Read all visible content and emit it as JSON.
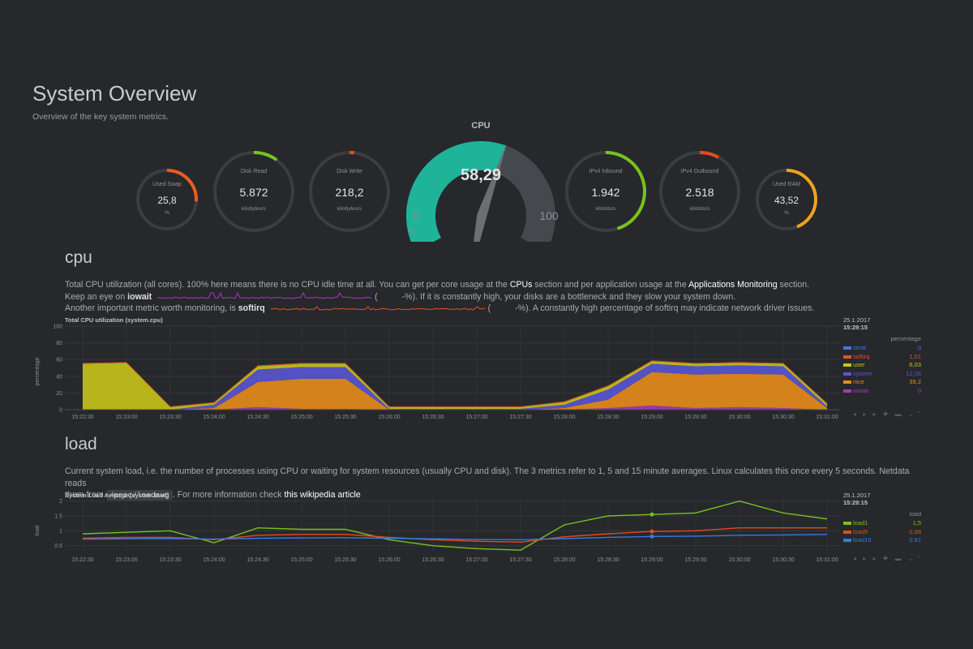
{
  "header": {
    "title": "System Overview",
    "subtitle": "Overview of the key system metrics."
  },
  "gauges": {
    "used_swap": {
      "title": "Used Swap",
      "value": "25,8",
      "units": "%",
      "fraction": 0.26,
      "color": "#e85e1e"
    },
    "disk_read": {
      "title": "Disk Read",
      "value": "5.872",
      "units": "kilobytes/s",
      "fraction": 0.1,
      "color": "#78c21a"
    },
    "disk_write": {
      "title": "Disk Write",
      "value": "218,2",
      "units": "kilobytes/s",
      "fraction": 0.02,
      "color": "#e84a1a"
    },
    "cpu": {
      "title": "CPU",
      "value": "58,29",
      "min": "0",
      "max": "100",
      "units": "%",
      "fraction": 0.583,
      "color": "#1fb39a"
    },
    "ipv4_inbound": {
      "title": "IPv4 Inbound",
      "value": "1.942",
      "units": "kilobits/s",
      "fraction": 0.45,
      "color": "#78c21a"
    },
    "ipv4_outbound": {
      "title": "IPv4 Outbound",
      "value": "2.518",
      "units": "kilobits/s",
      "fraction": 0.08,
      "color": "#e84a1a"
    },
    "used_ram": {
      "title": "Used RAM",
      "value": "43,52",
      "units": "%",
      "fraction": 0.44,
      "color": "#f0a21f"
    }
  },
  "cpu_section": {
    "title": "cpu",
    "line1_a": "Total CPU utilization (all cores). 100% here means there is no CPU idle time at all. You can get per core usage at the ",
    "line1_link1": "CPUs",
    "line1_b": " section and per application usage at the ",
    "line1_link2": "Applications Monitoring",
    "line1_c": " section.",
    "line2_a": "Keep an eye on ",
    "line2_bold": "iowait",
    "line2_paren_open": "(",
    "line2_b": "-%). If it is constantly high, your disks are a bottleneck and they slow your system down.",
    "line3_a": "Another important metric worth monitoring, is ",
    "line3_bold": "softirq",
    "line3_paren_open": "(",
    "line3_b": "-%). A constantly high percentage of softirq may indicate network driver issues.",
    "chart_title": "Total CPU utilization (system.cpu)",
    "y_axis_label": "percentage",
    "legend_date": "25.1.2017",
    "legend_time": "15:29:15",
    "legend_unit": "percentage",
    "legend": [
      {
        "name": "steal",
        "value": "0",
        "color": "#3a78e0"
      },
      {
        "name": "softirq",
        "value": "1,01",
        "color": "#e0542a"
      },
      {
        "name": "user",
        "value": "6,03",
        "color": "#c8c41a"
      },
      {
        "name": "system",
        "value": "12,06",
        "color": "#5a55d6"
      },
      {
        "name": "nice",
        "value": "39,2",
        "color": "#e88c1a"
      },
      {
        "name": "iowait",
        "value": "0",
        "color": "#a63ab8"
      }
    ]
  },
  "load_section": {
    "title": "load",
    "line1": "Current system load, i.e. the number of processes using CPU or waiting for system resources (usually CPU and disk). The 3 metrics refer to 1, 5 and 15 minute averages. Linux calculates this once every 5 seconds. Netdata reads",
    "line2_a": "them from ",
    "line2_code": "/proc/loadavg",
    "line2_b": ". For more information check ",
    "line2_link": "this wikipedia article",
    "chart_title": "System Load Average (system.load)",
    "y_axis_label": "load",
    "legend_date": "25.1.2017",
    "legend_time": "15:29:15",
    "legend_unit": "load",
    "legend": [
      {
        "name": "load1",
        "value": "1,5",
        "color": "#78c21a"
      },
      {
        "name": "load5",
        "value": "0,98",
        "color": "#e84a1a"
      },
      {
        "name": "load15",
        "value": "0,81",
        "color": "#3a78e0"
      }
    ]
  },
  "toolbar_glyphs": "◂ ▸ ▸ ✚ ▬  ⌄⌃",
  "chart_data": [
    {
      "type": "area",
      "title": "Total CPU utilization (system.cpu)",
      "ylabel": "percentage",
      "ylim": [
        0,
        100
      ],
      "yticks": [
        "0",
        "20",
        "40",
        "60",
        "80",
        "100"
      ],
      "x": [
        "15:22:30",
        "15:23:00",
        "15:23:30",
        "15:24:00",
        "15:24:30",
        "15:25:00",
        "15:25:30",
        "15:26:00",
        "15:26:30",
        "15:27:00",
        "15:27:30",
        "15:28:00",
        "15:28:30",
        "15:29:00",
        "15:29:30",
        "15:30:00",
        "15:30:30",
        "15:31:00"
      ],
      "stacked": true,
      "series": [
        {
          "name": "iowait",
          "values": [
            0,
            0,
            0,
            0,
            3,
            1,
            1,
            0,
            0,
            0,
            0,
            0,
            2,
            5,
            2,
            3,
            2,
            0
          ]
        },
        {
          "name": "nice",
          "values": [
            0,
            0,
            0,
            2,
            30,
            36,
            36,
            0,
            0,
            0,
            0,
            2,
            10,
            40,
            40,
            40,
            40,
            2
          ]
        },
        {
          "name": "system",
          "values": [
            0,
            0,
            0,
            4,
            15,
            14,
            14,
            1,
            1,
            1,
            1,
            4,
            12,
            10,
            10,
            10,
            10,
            2
          ]
        },
        {
          "name": "user",
          "values": [
            55,
            56,
            3,
            2,
            4,
            4,
            4,
            2,
            2,
            2,
            2,
            3,
            4,
            3,
            3,
            3,
            3,
            3
          ]
        },
        {
          "name": "softirq",
          "values": [
            1,
            1,
            1,
            1,
            1,
            1,
            1,
            1,
            1,
            1,
            1,
            1,
            1,
            1,
            1,
            1,
            1,
            1
          ]
        },
        {
          "name": "steal",
          "values": [
            0,
            0,
            0,
            0,
            0,
            0,
            0,
            0,
            0,
            0,
            0,
            0,
            0,
            0,
            0,
            0,
            0,
            0
          ]
        }
      ]
    },
    {
      "type": "line",
      "title": "System Load Average (system.load)",
      "ylabel": "load",
      "ylim": [
        0.3,
        2.1
      ],
      "yticks": [
        "0.5",
        "1",
        "1.5",
        "2"
      ],
      "x": [
        "15:22:30",
        "15:23:00",
        "15:23:30",
        "15:24:00",
        "15:24:30",
        "15:25:00",
        "15:25:30",
        "15:26:00",
        "15:26:30",
        "15:27:00",
        "15:27:30",
        "15:28:00",
        "15:28:30",
        "15:29:00",
        "15:29:30",
        "15:30:00",
        "15:30:30",
        "15:31:00"
      ],
      "series": [
        {
          "name": "load1",
          "values": [
            0.9,
            0.95,
            1.0,
            0.6,
            1.1,
            1.05,
            1.05,
            0.7,
            0.5,
            0.4,
            0.35,
            1.2,
            1.5,
            1.55,
            1.6,
            2.0,
            1.6,
            1.4
          ]
        },
        {
          "name": "load5",
          "values": [
            0.75,
            0.78,
            0.78,
            0.7,
            0.85,
            0.88,
            0.88,
            0.78,
            0.7,
            0.65,
            0.62,
            0.8,
            0.9,
            0.98,
            1.0,
            1.1,
            1.1,
            1.1
          ]
        },
        {
          "name": "load15",
          "values": [
            0.72,
            0.73,
            0.74,
            0.72,
            0.75,
            0.76,
            0.77,
            0.75,
            0.73,
            0.71,
            0.7,
            0.74,
            0.78,
            0.81,
            0.82,
            0.85,
            0.86,
            0.88
          ]
        }
      ]
    }
  ]
}
